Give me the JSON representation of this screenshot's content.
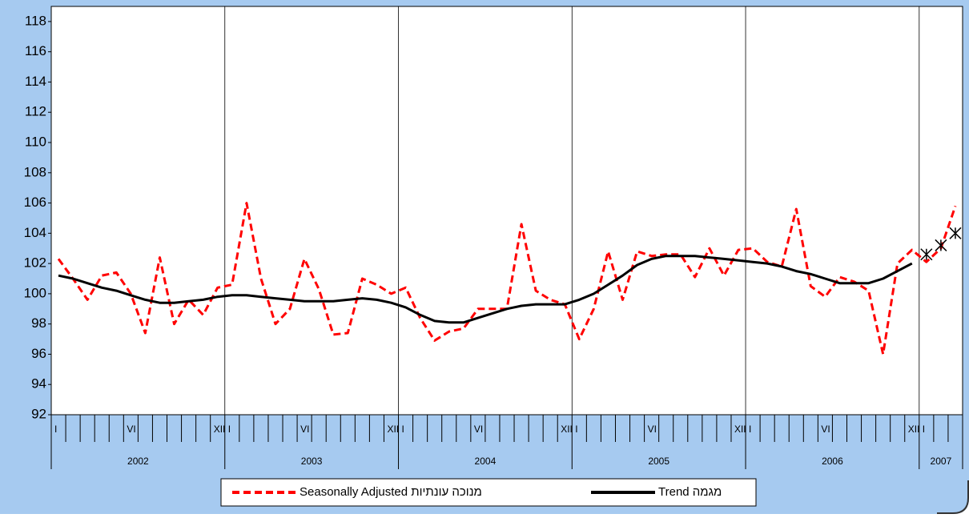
{
  "chart_data": {
    "type": "line",
    "categories": [
      "I",
      null,
      null,
      null,
      null,
      "VI",
      null,
      null,
      null,
      null,
      null,
      "XII",
      "I",
      null,
      null,
      null,
      null,
      "VI",
      null,
      null,
      null,
      null,
      null,
      "XII",
      "I",
      null,
      null,
      null,
      null,
      "VI",
      null,
      null,
      null,
      null,
      null,
      "XII",
      "I",
      null,
      null,
      null,
      null,
      "VI",
      null,
      null,
      null,
      null,
      null,
      "XII",
      "I",
      null,
      null,
      null,
      null,
      "VI",
      null,
      null,
      null,
      null,
      null,
      "XII",
      "I",
      null,
      null
    ],
    "years": [
      "2002",
      "2003",
      "2004",
      "2005",
      "2006",
      "2007"
    ],
    "ylim": [
      92,
      119
    ],
    "yticks": [
      92,
      94,
      96,
      98,
      100,
      102,
      104,
      106,
      108,
      110,
      112,
      114,
      116,
      118
    ],
    "series": [
      {
        "name": "Seasonally Adjusted מנוכה עונתיות",
        "color": "#ff0000",
        "dash": true,
        "values": [
          102.3,
          101.0,
          99.6,
          101.2,
          101.4,
          100.0,
          97.4,
          102.4,
          98.0,
          99.6,
          98.6,
          100.4,
          100.6,
          106.0,
          101.0,
          98.0,
          99.0,
          102.3,
          100.3,
          97.3,
          97.4,
          101.0,
          100.6,
          100.0,
          100.4,
          98.4,
          96.9,
          97.5,
          97.7,
          99.0,
          99.0,
          99.0,
          104.6,
          100.2,
          99.6,
          99.3,
          97.0,
          99.0,
          102.8,
          99.6,
          102.8,
          102.5,
          102.6,
          102.6,
          101.1,
          103.0,
          101.2,
          102.9,
          103.0,
          102.1,
          101.8,
          105.6,
          100.5,
          99.8,
          101.1,
          100.8,
          100.2,
          96.0,
          102.0,
          102.9,
          102.1,
          103.0,
          105.8
        ]
      },
      {
        "name": "Trend מגמה",
        "color": "#000000",
        "values": [
          101.2,
          101.0,
          100.7,
          100.4,
          100.2,
          99.9,
          99.6,
          99.4,
          99.4,
          99.5,
          99.6,
          99.8,
          99.9,
          99.9,
          99.8,
          99.7,
          99.6,
          99.5,
          99.5,
          99.5,
          99.6,
          99.7,
          99.6,
          99.4,
          99.1,
          98.6,
          98.2,
          98.1,
          98.1,
          98.4,
          98.7,
          99.0,
          99.2,
          99.3,
          99.3,
          99.3,
          99.6,
          100.0,
          100.6,
          101.2,
          101.9,
          102.3,
          102.5,
          102.5,
          102.5,
          102.4,
          102.3,
          102.2,
          102.1,
          102.0,
          101.8,
          101.5,
          101.3,
          101.0,
          100.7,
          100.7,
          100.7,
          101.0,
          101.5,
          102.0,
          null,
          null,
          null
        ]
      },
      {
        "color": "#000000",
        "marker": "asterisk",
        "values": [
          null,
          null,
          null,
          null,
          null,
          null,
          null,
          null,
          null,
          null,
          null,
          null,
          null,
          null,
          null,
          null,
          null,
          null,
          null,
          null,
          null,
          null,
          null,
          null,
          null,
          null,
          null,
          null,
          null,
          null,
          null,
          null,
          null,
          null,
          null,
          null,
          null,
          null,
          null,
          null,
          null,
          null,
          null,
          null,
          null,
          null,
          null,
          null,
          null,
          null,
          null,
          null,
          null,
          null,
          null,
          null,
          null,
          null,
          null,
          null,
          102.6,
          103.2,
          104.0
        ]
      }
    ],
    "grid": false
  }
}
